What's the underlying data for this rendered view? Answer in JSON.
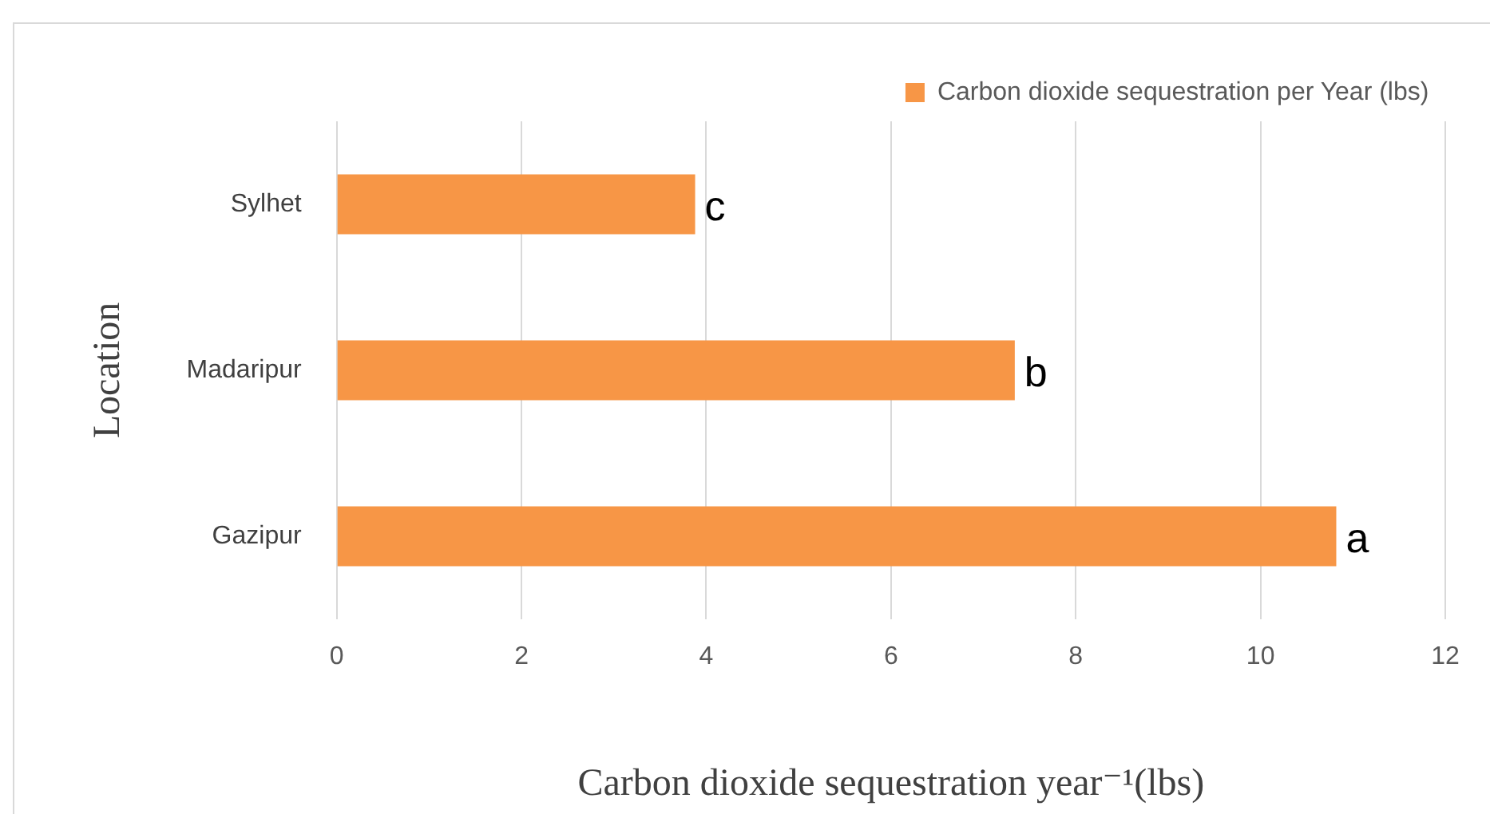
{
  "chart_data": {
    "type": "bar",
    "orientation": "horizontal",
    "categories": [
      "Sylhet",
      "Madaripur",
      "Gazipur"
    ],
    "series": [
      {
        "name": "Carbon dioxide sequestration per Year (lbs)",
        "color": "#f79646",
        "values": [
          3.88,
          7.34,
          10.82
        ]
      }
    ],
    "xlim": [
      0,
      12
    ],
    "xticks": [
      0,
      2,
      4,
      6,
      8,
      10,
      12
    ],
    "grid": "x",
    "legend": "top right",
    "xlabel": "Carbon dioxide sequestration year⁻¹(lbs)",
    "ylabel": "Location",
    "annotations": [
      {
        "text": "c",
        "x": 3.88,
        "y": "Sylhet"
      },
      {
        "text": "b",
        "x": 7.34,
        "y": "Madaripur"
      },
      {
        "text": "a",
        "x": 10.82,
        "y": "Gazipur"
      }
    ]
  }
}
